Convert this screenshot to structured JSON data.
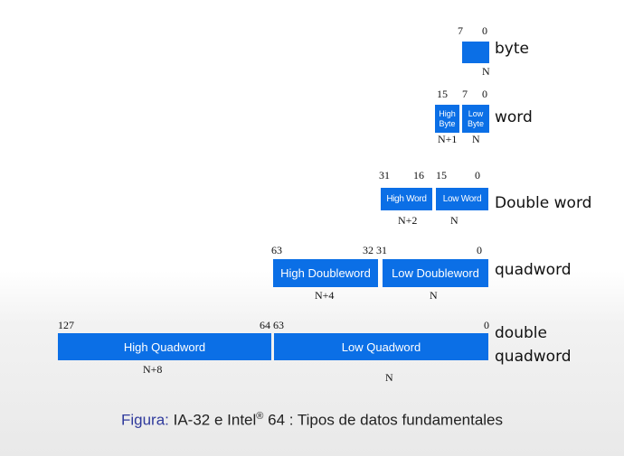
{
  "rows": {
    "byte": {
      "name": "byte",
      "bits": {
        "high": "7",
        "low": "0"
      },
      "index": "N"
    },
    "word": {
      "name": "word",
      "bits": {
        "high": "15",
        "mid": "7",
        "low": "0"
      },
      "high_part": {
        "line1": "High",
        "line2": "Byte"
      },
      "low_part": {
        "line1": "Low",
        "line2": "Byte"
      },
      "index_high": "N+1",
      "index_low": "N"
    },
    "doubleword": {
      "name": "Double word",
      "bits": {
        "high": "31",
        "mid_high": "16",
        "mid_low": "15",
        "low": "0"
      },
      "high_part": "High Word",
      "low_part": "Low Word",
      "index_high": "N+2",
      "index_low": "N"
    },
    "quadword": {
      "name": "quadword",
      "bits": {
        "high": "63",
        "mid": "32 31",
        "low": "0"
      },
      "high_part": "High Doubleword",
      "low_part": "Low Doubleword",
      "index_high": "N+4",
      "index_low": "N"
    },
    "double_quadword": {
      "name_line1": "double",
      "name_line2": "quadword",
      "bits": {
        "high": "127",
        "mid": "64 63",
        "low": "0"
      },
      "high_part": "High Quadword",
      "low_part": "Low  Quadword",
      "index_high": "N+8",
      "index_low": "N"
    }
  },
  "caption": {
    "lead": "Figura:",
    "text_a": " IA-32 e Intel",
    "registered": "®",
    "text_b": " 64 : Tipos de datos fundamentales"
  },
  "colors": {
    "box": "#0b6fe6",
    "caption_lead": "#2f3a9c"
  }
}
